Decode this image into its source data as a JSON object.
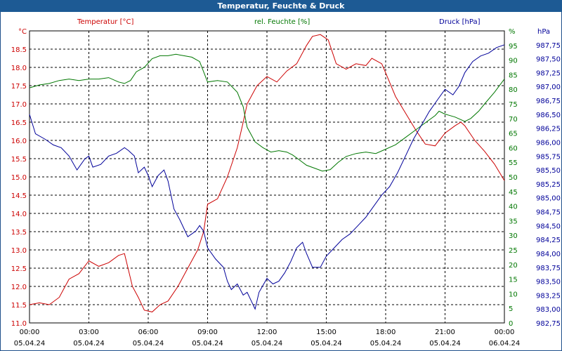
{
  "window": {
    "title": "Temperatur, Feuchte & Druck"
  },
  "chart_data": {
    "type": "line",
    "title": "Temperatur, Feuchte & Druck",
    "grid": true,
    "colors": {
      "temperature": "#cc0000",
      "humidity": "#007700",
      "pressure": "#000099"
    },
    "x_ticks": [
      {
        "time": "00:00",
        "date": "05.04.24"
      },
      {
        "time": "03:00",
        "date": "05.04.24"
      },
      {
        "time": "06:00",
        "date": "05.04.24"
      },
      {
        "time": "09:00",
        "date": "05.04.24"
      },
      {
        "time": "12:00",
        "date": "05.04.24"
      },
      {
        "time": "15:00",
        "date": "05.04.24"
      },
      {
        "time": "18:00",
        "date": "05.04.24"
      },
      {
        "time": "21:00",
        "date": "05.04.24"
      },
      {
        "time": "00:00",
        "date": "06.04.24"
      }
    ],
    "axes": {
      "temperature": {
        "unit": "°C",
        "ylim": [
          11.0,
          19.0
        ],
        "ticks": [
          "11.0",
          "11.5",
          "12.0",
          "12.5",
          "13.0",
          "13.5",
          "14.0",
          "14.5",
          "15.0",
          "15.5",
          "16.0",
          "16.5",
          "17.0",
          "17.5",
          "18.0",
          "18.5"
        ]
      },
      "humidity": {
        "unit": "%",
        "ylim": [
          0,
          100
        ],
        "ticks": [
          "0",
          "5",
          "10",
          "15",
          "20",
          "25",
          "30",
          "35",
          "40",
          "45",
          "50",
          "55",
          "60",
          "65",
          "70",
          "75",
          "80",
          "85",
          "90",
          "95"
        ]
      },
      "pressure": {
        "unit": "hPa",
        "ylim": [
          982.75,
          988.0
        ],
        "ticks": [
          "982,75",
          "983,00",
          "983,25",
          "983,50",
          "983,75",
          "984,00",
          "984,25",
          "984,50",
          "984,75",
          "985,00",
          "985,25",
          "985,50",
          "985,75",
          "986,00",
          "986,25",
          "986,50",
          "986,75",
          "987,00",
          "987,25",
          "987,50",
          "987,75"
        ]
      }
    },
    "series": [
      {
        "name": "Temperatur [°C]",
        "axis": "temperature",
        "points": [
          [
            0,
            11.5
          ],
          [
            0.5,
            11.55
          ],
          [
            1,
            11.5
          ],
          [
            1.5,
            11.7
          ],
          [
            2,
            12.2
          ],
          [
            2.5,
            12.35
          ],
          [
            3,
            12.7
          ],
          [
            3.5,
            12.55
          ],
          [
            4,
            12.65
          ],
          [
            4.5,
            12.85
          ],
          [
            4.8,
            12.9
          ],
          [
            5.2,
            12.0
          ],
          [
            5.5,
            11.7
          ],
          [
            5.8,
            11.35
          ],
          [
            6.2,
            11.3
          ],
          [
            6.6,
            11.5
          ],
          [
            7,
            11.6
          ],
          [
            7.5,
            12.0
          ],
          [
            8,
            12.5
          ],
          [
            8.5,
            13.0
          ],
          [
            8.8,
            13.5
          ],
          [
            9.0,
            14.25
          ],
          [
            9.5,
            14.4
          ],
          [
            10,
            15.0
          ],
          [
            10.5,
            15.8
          ],
          [
            10.8,
            16.5
          ],
          [
            11.0,
            17.0
          ],
          [
            11.5,
            17.5
          ],
          [
            12,
            17.75
          ],
          [
            12.5,
            17.6
          ],
          [
            13,
            17.9
          ],
          [
            13.5,
            18.1
          ],
          [
            14,
            18.6
          ],
          [
            14.3,
            18.85
          ],
          [
            14.7,
            18.9
          ],
          [
            15.1,
            18.75
          ],
          [
            15.5,
            18.1
          ],
          [
            16,
            17.95
          ],
          [
            16.5,
            18.1
          ],
          [
            17,
            18.05
          ],
          [
            17.3,
            18.25
          ],
          [
            17.8,
            18.1
          ],
          [
            18,
            17.85
          ],
          [
            18.5,
            17.2
          ],
          [
            19,
            16.75
          ],
          [
            19.5,
            16.3
          ],
          [
            20,
            15.9
          ],
          [
            20.5,
            15.85
          ],
          [
            21,
            16.2
          ],
          [
            21.5,
            16.4
          ],
          [
            21.8,
            16.5
          ],
          [
            22,
            16.4
          ],
          [
            22.5,
            16.0
          ],
          [
            23,
            15.7
          ],
          [
            23.5,
            15.35
          ],
          [
            24,
            14.9
          ]
        ]
      },
      {
        "name": "rel. Feuchte [%]",
        "axis": "humidity",
        "points": [
          [
            0,
            80.5
          ],
          [
            0.5,
            81.5
          ],
          [
            1,
            82
          ],
          [
            1.5,
            83
          ],
          [
            2,
            83.5
          ],
          [
            2.5,
            83
          ],
          [
            3,
            83.5
          ],
          [
            3.5,
            83.5
          ],
          [
            4,
            84
          ],
          [
            4.5,
            82.5
          ],
          [
            4.8,
            82
          ],
          [
            5.1,
            83
          ],
          [
            5.4,
            86
          ],
          [
            5.8,
            87.5
          ],
          [
            6.2,
            90.5
          ],
          [
            6.6,
            91.5
          ],
          [
            7,
            91.5
          ],
          [
            7.4,
            92
          ],
          [
            7.8,
            91.5
          ],
          [
            8.2,
            91
          ],
          [
            8.6,
            89.5
          ],
          [
            9.0,
            82.5
          ],
          [
            9.5,
            83
          ],
          [
            10,
            82.5
          ],
          [
            10.5,
            79
          ],
          [
            10.8,
            74
          ],
          [
            11.0,
            67
          ],
          [
            11.4,
            62
          ],
          [
            11.8,
            60
          ],
          [
            12.2,
            58.5
          ],
          [
            12.6,
            59
          ],
          [
            13,
            58.5
          ],
          [
            13.3,
            57.5
          ],
          [
            13.6,
            56
          ],
          [
            14,
            54
          ],
          [
            14.4,
            53
          ],
          [
            14.8,
            52
          ],
          [
            15.2,
            52.5
          ],
          [
            15.6,
            55
          ],
          [
            16,
            57
          ],
          [
            16.5,
            58
          ],
          [
            17,
            58.5
          ],
          [
            17.5,
            58
          ],
          [
            18,
            59.5
          ],
          [
            18.5,
            61
          ],
          [
            19,
            63.5
          ],
          [
            19.5,
            66
          ],
          [
            20,
            68.5
          ],
          [
            20.5,
            71
          ],
          [
            20.7,
            72.5
          ],
          [
            21,
            71.5
          ],
          [
            21.5,
            70.5
          ],
          [
            22,
            69
          ],
          [
            22.3,
            70
          ],
          [
            22.7,
            72.5
          ],
          [
            23,
            75
          ],
          [
            23.5,
            79
          ],
          [
            24,
            83.5
          ]
        ]
      },
      {
        "name": "Druck [hPa]",
        "axis": "pressure",
        "points": [
          [
            0,
            986.5
          ],
          [
            0.3,
            986.15
          ],
          [
            0.8,
            986.05
          ],
          [
            1.2,
            985.95
          ],
          [
            1.6,
            985.9
          ],
          [
            2,
            985.75
          ],
          [
            2.4,
            985.5
          ],
          [
            2.8,
            985.7
          ],
          [
            3.0,
            985.75
          ],
          [
            3.2,
            985.55
          ],
          [
            3.6,
            985.6
          ],
          [
            4,
            985.75
          ],
          [
            4.4,
            985.8
          ],
          [
            4.8,
            985.9
          ],
          [
            5.0,
            985.85
          ],
          [
            5.3,
            985.75
          ],
          [
            5.5,
            985.45
          ],
          [
            5.8,
            985.55
          ],
          [
            6.0,
            985.4
          ],
          [
            6.2,
            985.2
          ],
          [
            6.5,
            985.4
          ],
          [
            6.8,
            985.5
          ],
          [
            7.0,
            985.3
          ],
          [
            7.3,
            984.8
          ],
          [
            7.6,
            984.6
          ],
          [
            8,
            984.3
          ],
          [
            8.4,
            984.4
          ],
          [
            8.6,
            984.5
          ],
          [
            8.8,
            984.4
          ],
          [
            9.0,
            984.1
          ],
          [
            9.4,
            983.9
          ],
          [
            9.8,
            983.75
          ],
          [
            10,
            983.5
          ],
          [
            10.2,
            983.35
          ],
          [
            10.5,
            983.45
          ],
          [
            10.8,
            983.25
          ],
          [
            11.0,
            983.3
          ],
          [
            11.2,
            983.15
          ],
          [
            11.4,
            983.0
          ],
          [
            11.6,
            983.3
          ],
          [
            12,
            983.55
          ],
          [
            12.3,
            983.45
          ],
          [
            12.6,
            983.5
          ],
          [
            12.9,
            983.65
          ],
          [
            13.2,
            983.85
          ],
          [
            13.5,
            984.1
          ],
          [
            13.8,
            984.2
          ],
          [
            14,
            984.0
          ],
          [
            14.3,
            983.75
          ],
          [
            14.7,
            983.75
          ],
          [
            15,
            983.95
          ],
          [
            15.4,
            984.1
          ],
          [
            15.8,
            984.25
          ],
          [
            16.2,
            984.35
          ],
          [
            16.6,
            984.5
          ],
          [
            17,
            984.65
          ],
          [
            17.4,
            984.85
          ],
          [
            17.8,
            985.05
          ],
          [
            18.2,
            985.2
          ],
          [
            18.6,
            985.45
          ],
          [
            19.0,
            985.75
          ],
          [
            19.4,
            986.05
          ],
          [
            19.8,
            986.3
          ],
          [
            20.2,
            986.55
          ],
          [
            20.6,
            986.75
          ],
          [
            21,
            986.95
          ],
          [
            21.4,
            986.85
          ],
          [
            21.7,
            987.0
          ],
          [
            22.0,
            987.25
          ],
          [
            22.4,
            987.45
          ],
          [
            22.8,
            987.55
          ],
          [
            23.2,
            987.6
          ],
          [
            23.6,
            987.7
          ],
          [
            24,
            987.75
          ]
        ]
      }
    ]
  }
}
